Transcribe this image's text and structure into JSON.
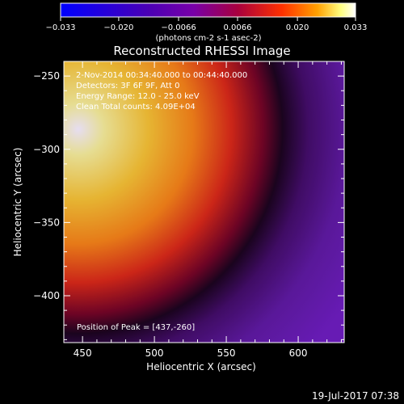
{
  "chart_data": {
    "type": "heatmap",
    "title": "Reconstructed RHESSI Image",
    "xlabel": "Heliocentric X (arcsec)",
    "ylabel": "Heliocentric Y (arcsec)",
    "xlim": [
      437,
      632
    ],
    "ylim": [
      -432,
      -240
    ],
    "x_ticks": [
      450,
      500,
      550,
      600
    ],
    "y_ticks": [
      -250,
      -300,
      -350,
      -400
    ],
    "peak": [
      437,
      -260
    ],
    "annotations": [
      "2-Nov-2014 00:34:40.000 to 00:44:40.000",
      "Detectors: 3F 6F 9F, Att 0",
      "Energy Range: 12.0 - 25.0 keV",
      "Clean    Total counts: 4.09E+04"
    ],
    "peak_label": "Position of Peak = [437,-260]",
    "colorbar": {
      "min": -0.033,
      "max": 0.033,
      "ticks": [
        "-0.033",
        "-0.020",
        "-0.0066",
        "0.0066",
        "0.020",
        "0.033"
      ],
      "unit_label": "(photons cm-2 s-1 asec-2)",
      "colors": [
        "#0000ff",
        "#4b00b4",
        "#7800a8",
        "#a8003e",
        "#ff3000",
        "#ffa000",
        "#ffff80",
        "#ffffff"
      ]
    }
  },
  "footer": {
    "date": "19-Jul-2017 07:38"
  }
}
